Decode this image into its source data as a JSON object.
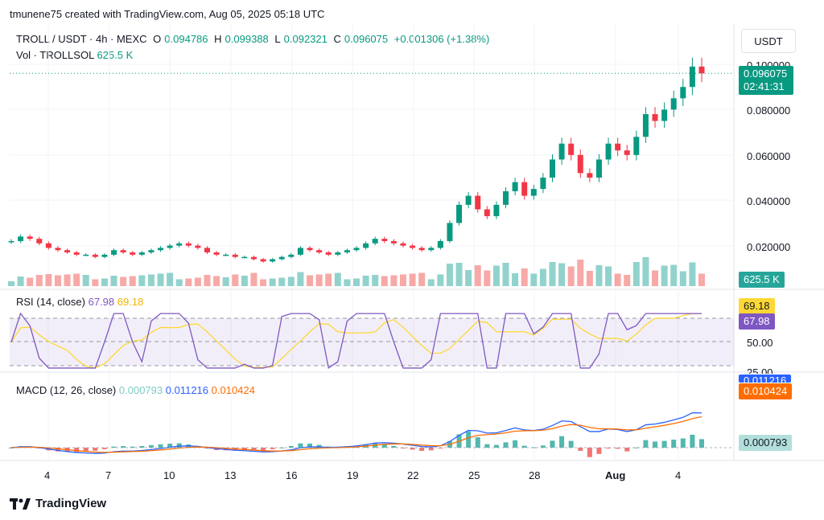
{
  "header": {
    "text": "tmunene75 created with TradingView.com, Aug 05, 2025 05:18 UTC"
  },
  "legend": {
    "symbol": "TROLL / USDT · 4h · MEXC",
    "open_label": "O",
    "open": "0.094786",
    "high_label": "H",
    "high": "0.099388",
    "low_label": "L",
    "low": "0.092321",
    "close_label": "C",
    "close": "0.096075",
    "change": "+0.001306 (+1.38%)",
    "vol_label": "Vol · TROLLSOL",
    "vol_value": "625.5 K"
  },
  "currency_button": "USDT",
  "price_axis": [
    "0.100000",
    "0.080000",
    "0.060000",
    "0.040000",
    "0.020000"
  ],
  "price_tag": {
    "price": "0.096075",
    "countdown": "02:41:31"
  },
  "volume_tag": "625.5 K",
  "rsi": {
    "label": "RSI (14, close)",
    "value1": "67.98",
    "value2": "69.18",
    "axis": [
      "50.00",
      "25.00"
    ],
    "tag_rsi": "67.98",
    "tag_ma": "69.18"
  },
  "macd": {
    "label": "MACD (12, 26, close)",
    "hist": "0.000793",
    "macd": "0.011216",
    "signal": "0.010424",
    "tag_signal": "0.010424",
    "tag_hist": "0.000793",
    "tag_macd_partial": "0.011216"
  },
  "x_axis": [
    "4",
    "7",
    "10",
    "13",
    "16",
    "19",
    "22",
    "25",
    "28",
    "Aug",
    "4"
  ],
  "footer": {
    "brand": "TradingView"
  },
  "colors": {
    "up": "#089981",
    "down": "#f23645",
    "rsi": "#7e57c2",
    "rsi_ma": "#fdd835",
    "macd": "#2962ff",
    "signal": "#ff6d00",
    "hist_up": "#26a69a",
    "hist_down": "#ef5350"
  },
  "chart_data": {
    "type": "candlestick",
    "title": "TROLL / USDT · 4h · MEXC",
    "ylim": [
      0,
      0.105
    ],
    "close_series": [
      0.022,
      0.024,
      0.023,
      0.021,
      0.019,
      0.018,
      0.017,
      0.016,
      0.016,
      0.015,
      0.016,
      0.018,
      0.017,
      0.016,
      0.017,
      0.018,
      0.019,
      0.02,
      0.021,
      0.02,
      0.019,
      0.017,
      0.016,
      0.016,
      0.015,
      0.015,
      0.014,
      0.013,
      0.014,
      0.015,
      0.016,
      0.019,
      0.018,
      0.017,
      0.016,
      0.017,
      0.018,
      0.019,
      0.021,
      0.023,
      0.022,
      0.021,
      0.02,
      0.019,
      0.018,
      0.019,
      0.022,
      0.03,
      0.038,
      0.042,
      0.036,
      0.033,
      0.038,
      0.044,
      0.048,
      0.042,
      0.045,
      0.05,
      0.058,
      0.065,
      0.06,
      0.052,
      0.05,
      0.058,
      0.065,
      0.062,
      0.06,
      0.068,
      0.078,
      0.075,
      0.08,
      0.085,
      0.09,
      0.099,
      0.096
    ]
  }
}
